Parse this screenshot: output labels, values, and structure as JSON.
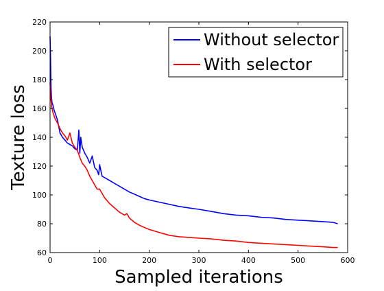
{
  "chart_data": {
    "type": "line",
    "xlabel": "Sampled iterations",
    "ylabel": "Texture loss",
    "xlim": [
      0,
      600
    ],
    "ylim": [
      60,
      220
    ],
    "xticks": [
      0,
      100,
      200,
      300,
      400,
      500,
      600
    ],
    "yticks": [
      60,
      80,
      100,
      120,
      140,
      160,
      180,
      200,
      220
    ],
    "grid": false,
    "legend_position": "top-right",
    "series": [
      {
        "name": "Without selector",
        "color": "#0000ff",
        "x": [
          0,
          1,
          2,
          3,
          4,
          6,
          8,
          10,
          15,
          20,
          25,
          30,
          35,
          40,
          45,
          50,
          55,
          58,
          60,
          62,
          65,
          70,
          75,
          80,
          85,
          90,
          95,
          98,
          100,
          105,
          110,
          120,
          130,
          140,
          150,
          160,
          170,
          180,
          190,
          200,
          220,
          240,
          260,
          280,
          300,
          325,
          350,
          375,
          400,
          425,
          450,
          475,
          500,
          525,
          550,
          570,
          580
        ],
        "y": [
          210,
          195,
          175,
          167,
          164,
          162,
          159,
          157,
          152,
          143,
          140,
          138,
          136,
          135,
          134,
          132,
          131,
          145,
          129,
          140,
          133,
          129,
          126,
          122,
          127,
          119,
          117,
          114,
          121,
          113,
          112,
          110,
          108,
          106,
          104,
          102,
          100.5,
          99,
          97.5,
          96.5,
          95,
          93.5,
          92,
          91,
          90,
          88.5,
          87,
          86,
          85.5,
          84.5,
          84,
          83,
          82.5,
          82,
          81.5,
          81,
          80
        ]
      },
      {
        "name": "With selector",
        "color": "#ff0000",
        "x": [
          0,
          1,
          2,
          3,
          4,
          6,
          8,
          10,
          15,
          20,
          25,
          30,
          35,
          40,
          45,
          50,
          55,
          60,
          65,
          70,
          75,
          80,
          85,
          90,
          95,
          100,
          105,
          110,
          120,
          130,
          140,
          150,
          155,
          160,
          170,
          180,
          190,
          200,
          220,
          240,
          260,
          280,
          300,
          325,
          350,
          375,
          400,
          425,
          450,
          475,
          500,
          525,
          550,
          570,
          580
        ],
        "y": [
          178,
          172,
          166,
          162,
          160,
          157,
          155,
          153,
          150,
          146,
          143,
          141,
          138,
          143,
          136,
          133,
          131,
          126,
          122,
          120,
          117,
          113,
          110,
          107,
          104,
          104,
          101,
          98,
          94,
          91,
          88,
          86,
          87,
          84,
          81,
          79,
          77.5,
          76,
          74,
          72,
          71,
          70.5,
          70,
          69.5,
          68.5,
          68,
          67,
          66.5,
          66,
          65.5,
          65,
          64.5,
          64,
          63.5,
          63.5
        ]
      }
    ]
  }
}
